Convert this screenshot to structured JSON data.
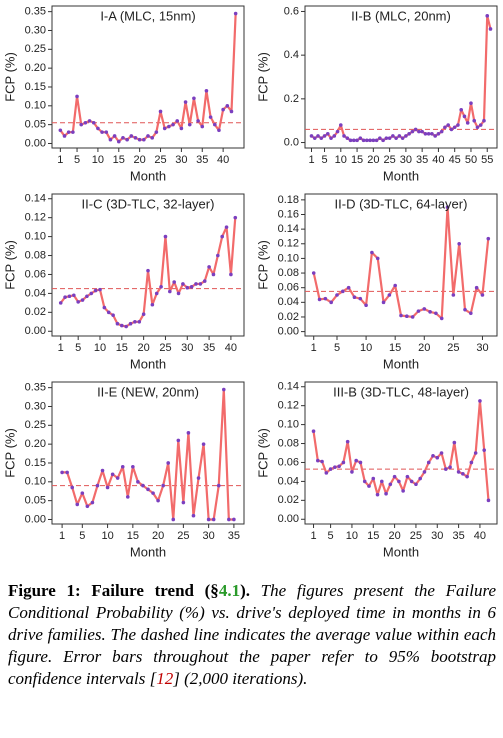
{
  "chart_data": [
    {
      "type": "line",
      "title": "I-A (MLC, 15nm)",
      "x_label": "Month",
      "y_label": "FCP (%)",
      "color": "#f26b6b",
      "marker_color": "#7b3fbf",
      "x": [
        1,
        2,
        3,
        4,
        5,
        6,
        7,
        8,
        9,
        10,
        11,
        12,
        13,
        14,
        15,
        16,
        17,
        18,
        19,
        20,
        21,
        22,
        23,
        24,
        25,
        26,
        27,
        28,
        29,
        30,
        31,
        32,
        33,
        34,
        35,
        36,
        37,
        38,
        39,
        40,
        41,
        42,
        43
      ],
      "values": [
        0.035,
        0.02,
        0.03,
        0.03,
        0.125,
        0.05,
        0.055,
        0.06,
        0.055,
        0.04,
        0.03,
        0.03,
        0.01,
        0.02,
        0.005,
        0.015,
        0.01,
        0.02,
        0.015,
        0.01,
        0.01,
        0.02,
        0.015,
        0.03,
        0.085,
        0.04,
        0.045,
        0.05,
        0.06,
        0.04,
        0.11,
        0.05,
        0.12,
        0.06,
        0.045,
        0.14,
        0.07,
        0.05,
        0.035,
        0.09,
        0.1,
        0.085,
        0.345
      ],
      "average": 0.055,
      "xlim": [
        -1,
        45
      ],
      "xticks": [
        1,
        5,
        10,
        15,
        20,
        25,
        30,
        35,
        40
      ],
      "ylim": [
        -0.012,
        0.365
      ],
      "yticks": [
        {
          "value": 0,
          "label": "0.00"
        },
        0.05,
        {
          "value": 0.1,
          "label": "0.10"
        },
        0.15,
        {
          "value": 0.2,
          "label": "0.20"
        },
        0.25,
        {
          "value": 0.3,
          "label": "0.30"
        },
        0.35
      ]
    },
    {
      "type": "line",
      "title": "II-B (MLC, 20nm)",
      "x_label": "Month",
      "y_label": "FCP (%)",
      "color": "#f26b6b",
      "marker_color": "#7b3fbf",
      "x": [
        1,
        2,
        3,
        4,
        5,
        6,
        7,
        8,
        9,
        10,
        11,
        12,
        13,
        14,
        15,
        16,
        17,
        18,
        19,
        20,
        21,
        22,
        23,
        24,
        25,
        26,
        27,
        28,
        29,
        30,
        31,
        32,
        33,
        34,
        35,
        36,
        37,
        38,
        39,
        40,
        41,
        42,
        43,
        44,
        45,
        46,
        47,
        48,
        49,
        50,
        51,
        52,
        53,
        54,
        55,
        56
      ],
      "values": [
        0.03,
        0.02,
        0.03,
        0.02,
        0.03,
        0.04,
        0.02,
        0.03,
        0.05,
        0.08,
        0.03,
        0.02,
        0.01,
        0.01,
        0.01,
        0.02,
        0.01,
        0.01,
        0.01,
        0.01,
        0.01,
        0.02,
        0.01,
        0.02,
        0.02,
        0.03,
        0.02,
        0.03,
        0.02,
        0.03,
        0.04,
        0.05,
        0.06,
        0.05,
        0.05,
        0.04,
        0.04,
        0.04,
        0.03,
        0.04,
        0.05,
        0.07,
        0.08,
        0.06,
        0.07,
        0.08,
        0.15,
        0.12,
        0.09,
        0.18,
        0.1,
        0.07,
        0.08,
        0.1,
        0.58,
        0.52
      ],
      "average": 0.06,
      "xlim": [
        -1,
        58
      ],
      "xticks": [
        1,
        5,
        10,
        15,
        20,
        25,
        30,
        35,
        40,
        45,
        50,
        55
      ],
      "ylim": [
        -0.025,
        0.625
      ],
      "yticks": [
        {
          "value": 0,
          "label": "0.0"
        },
        0.2,
        0.4,
        0.6
      ]
    },
    {
      "type": "line",
      "title": "II-C (3D-TLC, 32-layer)",
      "x_label": "Month",
      "y_label": "FCP (%)",
      "color": "#f26b6b",
      "marker_color": "#7b3fbf",
      "x": [
        1,
        2,
        3,
        4,
        5,
        6,
        7,
        8,
        9,
        10,
        11,
        12,
        13,
        14,
        15,
        16,
        17,
        18,
        19,
        20,
        21,
        22,
        23,
        24,
        25,
        26,
        27,
        28,
        29,
        30,
        31,
        32,
        33,
        34,
        35,
        36,
        37,
        38,
        39,
        40,
        41
      ],
      "values": [
        0.03,
        0.036,
        0.037,
        0.038,
        0.031,
        0.033,
        0.037,
        0.04,
        0.043,
        0.044,
        0.025,
        0.02,
        0.017,
        0.008,
        0.006,
        0.005,
        0.008,
        0.01,
        0.01,
        0.018,
        0.064,
        0.028,
        0.04,
        0.047,
        0.1,
        0.042,
        0.052,
        0.04,
        0.05,
        0.046,
        0.047,
        0.05,
        0.05,
        0.053,
        0.068,
        0.06,
        0.08,
        0.1,
        0.11,
        0.06,
        0.12
      ],
      "average": 0.045,
      "xlim": [
        -1,
        43
      ],
      "xticks": [
        1,
        5,
        10,
        15,
        20,
        25,
        30,
        35,
        40
      ],
      "ylim": [
        -0.005,
        0.145
      ],
      "yticks": [
        {
          "value": 0,
          "label": "0.00"
        },
        {
          "value": 0.02,
          "label": "0.02"
        },
        {
          "value": 0.04,
          "label": "0.04"
        },
        {
          "value": 0.06,
          "label": "0.06"
        },
        {
          "value": 0.08,
          "label": "0.08"
        },
        {
          "value": 0.1,
          "label": "0.10"
        },
        {
          "value": 0.12,
          "label": "0.12"
        },
        {
          "value": 0.14,
          "label": "0.14"
        }
      ]
    },
    {
      "type": "line",
      "title": "II-D (3D-TLC, 64-layer)",
      "x_label": "Month",
      "y_label": "FCP (%)",
      "color": "#f26b6b",
      "marker_color": "#7b3fbf",
      "x": [
        1,
        2,
        3,
        4,
        5,
        6,
        7,
        8,
        9,
        10,
        11,
        12,
        13,
        14,
        15,
        16,
        17,
        18,
        19,
        20,
        21,
        22,
        23,
        24,
        25,
        26,
        27,
        28,
        29,
        30,
        31
      ],
      "values": [
        0.08,
        0.044,
        0.045,
        0.04,
        0.05,
        0.055,
        0.06,
        0.047,
        0.045,
        0.036,
        0.108,
        0.1,
        0.04,
        0.05,
        0.063,
        0.022,
        0.021,
        0.02,
        0.028,
        0.031,
        0.027,
        0.025,
        0.018,
        0.17,
        0.05,
        0.12,
        0.03,
        0.025,
        0.06,
        0.05,
        0.127
      ],
      "average": 0.055,
      "xlim": [
        -0.5,
        32.5
      ],
      "xticks": [
        1,
        5,
        10,
        15,
        20,
        25,
        30
      ],
      "ylim": [
        -0.006,
        0.188
      ],
      "yticks": [
        {
          "value": 0,
          "label": "0.00"
        },
        {
          "value": 0.02,
          "label": "0.02"
        },
        {
          "value": 0.04,
          "label": "0.04"
        },
        {
          "value": 0.06,
          "label": "0.06"
        },
        {
          "value": 0.08,
          "label": "0.08"
        },
        {
          "value": 0.1,
          "label": "0.10"
        },
        {
          "value": 0.12,
          "label": "0.12"
        },
        {
          "value": 0.14,
          "label": "0.14"
        },
        {
          "value": 0.16,
          "label": "0.16"
        },
        {
          "value": 0.18,
          "label": "0.18"
        }
      ]
    },
    {
      "type": "line",
      "title": "II-E (NEW, 20nm)",
      "x_label": "Month",
      "y_label": "FCP (%)",
      "color": "#f26b6b",
      "marker_color": "#7b3fbf",
      "x": [
        1,
        2,
        3,
        4,
        5,
        6,
        7,
        8,
        9,
        10,
        11,
        12,
        13,
        14,
        15,
        16,
        17,
        18,
        19,
        20,
        21,
        22,
        23,
        24,
        25,
        26,
        27,
        28,
        29,
        30,
        31,
        32,
        33,
        34,
        35
      ],
      "values": [
        0.125,
        0.125,
        0.085,
        0.04,
        0.07,
        0.035,
        0.045,
        0.09,
        0.13,
        0.085,
        0.12,
        0.11,
        0.14,
        0.06,
        0.14,
        0.1,
        0.09,
        0.08,
        0.07,
        0.05,
        0.09,
        0.15,
        0,
        0.21,
        0.045,
        0.23,
        0.01,
        0.11,
        0.2,
        0,
        0,
        0.09,
        0.345,
        0,
        0
      ],
      "average": 0.09,
      "xlim": [
        -1,
        37
      ],
      "xticks": [
        1,
        5,
        10,
        15,
        20,
        25,
        30,
        35
      ],
      "ylim": [
        -0.012,
        0.365
      ],
      "yticks": [
        {
          "value": 0,
          "label": "0.00"
        },
        0.05,
        {
          "value": 0.1,
          "label": "0.10"
        },
        0.15,
        {
          "value": 0.2,
          "label": "0.20"
        },
        0.25,
        {
          "value": 0.3,
          "label": "0.30"
        },
        0.35
      ]
    },
    {
      "type": "line",
      "title": "III-B (3D-TLC, 48-layer)",
      "x_label": "Month",
      "y_label": "FCP (%)",
      "color": "#f26b6b",
      "marker_color": "#7b3fbf",
      "x": [
        1,
        2,
        3,
        4,
        5,
        6,
        7,
        8,
        9,
        10,
        11,
        12,
        13,
        14,
        15,
        16,
        17,
        18,
        19,
        20,
        21,
        22,
        23,
        24,
        25,
        26,
        27,
        28,
        29,
        30,
        31,
        32,
        33,
        34,
        35,
        36,
        37,
        38,
        39,
        40,
        41,
        42
      ],
      "values": [
        0.093,
        0.062,
        0.061,
        0.049,
        0.053,
        0.055,
        0.056,
        0.06,
        0.082,
        0.05,
        0.062,
        0.06,
        0.04,
        0.035,
        0.043,
        0.026,
        0.04,
        0.027,
        0.037,
        0.045,
        0.04,
        0.03,
        0.045,
        0.04,
        0.037,
        0.043,
        0.05,
        0.06,
        0.067,
        0.065,
        0.07,
        0.053,
        0.055,
        0.081,
        0.05,
        0.048,
        0.045,
        0.06,
        0.07,
        0.125,
        0.073,
        0.02
      ],
      "average": 0.053,
      "xlim": [
        -1,
        44
      ],
      "xticks": [
        1,
        5,
        10,
        15,
        20,
        25,
        30,
        35,
        40
      ],
      "ylim": [
        -0.005,
        0.145
      ],
      "yticks": [
        {
          "value": 0,
          "label": "0.00"
        },
        {
          "value": 0.02,
          "label": "0.02"
        },
        {
          "value": 0.04,
          "label": "0.04"
        },
        {
          "value": 0.06,
          "label": "0.06"
        },
        {
          "value": 0.08,
          "label": "0.08"
        },
        {
          "value": 0.1,
          "label": "0.10"
        },
        {
          "value": 0.12,
          "label": "0.12"
        },
        {
          "value": 0.14,
          "label": "0.14"
        }
      ]
    }
  ],
  "caption": {
    "label": "Figure 1:",
    "heading": "Failure trend (§",
    "section_ref": "4.1",
    "heading_end": ").",
    "text": "The figures present the Failure Conditional Probability (%) vs. drive's deployed time in months in 6 drive families. The dashed line indicates the average value within each figure. Error bars throughout the paper refer to 95% bootstrap confidence intervals [",
    "citation": "12",
    "text_end": "] (2,000 iterations)."
  }
}
